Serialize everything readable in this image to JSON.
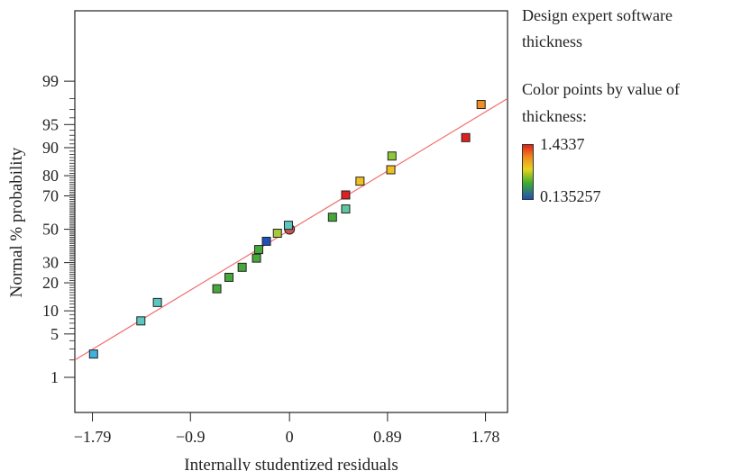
{
  "chart_data": {
    "type": "scatter",
    "xlabel": "Internally studentized residuals",
    "ylabel": "Normal % probability",
    "x_ticks": [
      -1.79,
      -0.9,
      0,
      0.89,
      1.78
    ],
    "x_tick_labels": [
      "−1.79",
      "−0.9",
      "0",
      "0.89",
      "1.78"
    ],
    "y_ticks_labeled": [
      1,
      5,
      10,
      20,
      30,
      50,
      70,
      80,
      90,
      95,
      99
    ],
    "y_scale": "normal-probability",
    "xlim": [
      -1.95,
      1.98
    ],
    "ylim": [
      0.2,
      99.97
    ],
    "reference_line": {
      "from": [
        -1.95,
        2.0
      ],
      "to": [
        1.98,
        98.0
      ],
      "color": "#f07070"
    },
    "points": [
      {
        "x": -1.78,
        "y": 2.5,
        "color": "#3fb0e0"
      },
      {
        "x": -1.35,
        "y": 7.5,
        "color": "#5cc6c0"
      },
      {
        "x": -1.2,
        "y": 12.5,
        "color": "#5cc6c0"
      },
      {
        "x": -0.66,
        "y": 17.5,
        "color": "#46a83a"
      },
      {
        "x": -0.55,
        "y": 22.5,
        "color": "#46a83a"
      },
      {
        "x": -0.43,
        "y": 27.5,
        "color": "#46a83a"
      },
      {
        "x": -0.3,
        "y": 32.5,
        "color": "#46a83a"
      },
      {
        "x": -0.28,
        "y": 37.5,
        "color": "#46a83a"
      },
      {
        "x": -0.21,
        "y": 42.5,
        "color": "#1f4fb8"
      },
      {
        "x": -0.11,
        "y": 47.5,
        "color": "#a8c83a"
      },
      {
        "x": 0.0,
        "y": 50.0,
        "color": "#d05050",
        "shape": "circle"
      },
      {
        "x": -0.01,
        "y": 52.5,
        "color": "#5cc6c0"
      },
      {
        "x": 0.39,
        "y": 57.5,
        "color": "#46a83a"
      },
      {
        "x": 0.51,
        "y": 62.5,
        "color": "#5cc6a0"
      },
      {
        "x": 0.51,
        "y": 70.5,
        "color": "#e02020"
      },
      {
        "x": 0.64,
        "y": 77.5,
        "color": "#f0c020"
      },
      {
        "x": 0.92,
        "y": 82.5,
        "color": "#f0c020"
      },
      {
        "x": 0.93,
        "y": 87.5,
        "color": "#8cc83a"
      },
      {
        "x": 1.6,
        "y": 92.5,
        "color": "#e02020"
      },
      {
        "x": 1.74,
        "y": 97.5,
        "color": "#f09020"
      }
    ]
  },
  "side_panel": {
    "title_line1": "Design expert software",
    "title_line2": "thickness",
    "colorby_line1": "Color points by value of",
    "colorby_line2": "thickness:",
    "colorbar_max": "1.4337",
    "colorbar_min": "0.135257"
  }
}
